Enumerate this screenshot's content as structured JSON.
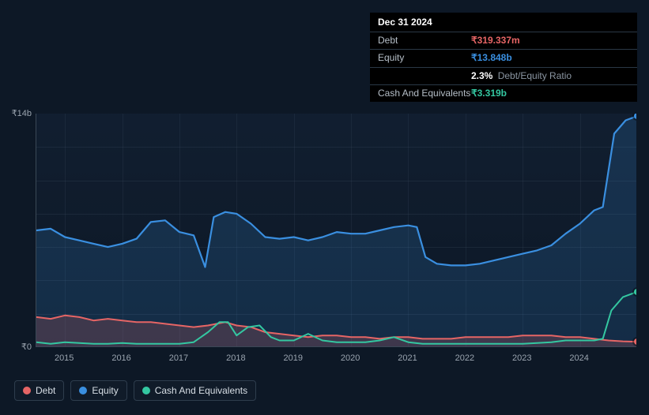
{
  "tooltip": {
    "date": "Dec 31 2024",
    "rows": [
      {
        "label": "Debt",
        "value": "₹319.337m",
        "color": "#e66565"
      },
      {
        "label": "Equity",
        "value": "₹13.848b",
        "color": "#3a8fe0"
      },
      {
        "label": "",
        "value": "2.3%",
        "suffix": "Debt/Equity Ratio",
        "color": "#ffffff"
      },
      {
        "label": "Cash And Equivalents",
        "value": "₹3.319b",
        "color": "#34c7a1"
      }
    ]
  },
  "chart": {
    "y_max": 14,
    "y_axis_labels": [
      {
        "text": "₹14b",
        "value": 14
      },
      {
        "text": "₹0",
        "value": 0
      }
    ],
    "grid_y_values": [
      2,
      4,
      6,
      8,
      10,
      12
    ],
    "x_labels": [
      "2015",
      "2016",
      "2017",
      "2018",
      "2019",
      "2020",
      "2021",
      "2022",
      "2023",
      "2024"
    ],
    "x_start": 2014.5,
    "x_end": 2025.0,
    "background": "#0d1826",
    "grid_color": "rgba(72,90,110,0.22)",
    "axis_color": "#3a4856",
    "series": {
      "equity": {
        "label": "Equity",
        "color": "#3a8fe0",
        "fill_opacity": 0.18,
        "stroke_width": 2.2,
        "points": [
          [
            2014.5,
            7.0
          ],
          [
            2014.75,
            7.1
          ],
          [
            2015.0,
            6.6
          ],
          [
            2015.25,
            6.4
          ],
          [
            2015.5,
            6.2
          ],
          [
            2015.75,
            6.0
          ],
          [
            2016.0,
            6.2
          ],
          [
            2016.25,
            6.5
          ],
          [
            2016.5,
            7.5
          ],
          [
            2016.75,
            7.6
          ],
          [
            2017.0,
            6.9
          ],
          [
            2017.25,
            6.7
          ],
          [
            2017.45,
            4.8
          ],
          [
            2017.6,
            7.8
          ],
          [
            2017.8,
            8.1
          ],
          [
            2018.0,
            8.0
          ],
          [
            2018.25,
            7.4
          ],
          [
            2018.5,
            6.6
          ],
          [
            2018.75,
            6.5
          ],
          [
            2019.0,
            6.6
          ],
          [
            2019.25,
            6.4
          ],
          [
            2019.5,
            6.6
          ],
          [
            2019.75,
            6.9
          ],
          [
            2020.0,
            6.8
          ],
          [
            2020.25,
            6.8
          ],
          [
            2020.5,
            7.0
          ],
          [
            2020.75,
            7.2
          ],
          [
            2021.0,
            7.3
          ],
          [
            2021.15,
            7.2
          ],
          [
            2021.3,
            5.4
          ],
          [
            2021.5,
            5.0
          ],
          [
            2021.75,
            4.9
          ],
          [
            2022.0,
            4.9
          ],
          [
            2022.25,
            5.0
          ],
          [
            2022.5,
            5.2
          ],
          [
            2022.75,
            5.4
          ],
          [
            2023.0,
            5.6
          ],
          [
            2023.25,
            5.8
          ],
          [
            2023.5,
            6.1
          ],
          [
            2023.75,
            6.8
          ],
          [
            2024.0,
            7.4
          ],
          [
            2024.25,
            8.2
          ],
          [
            2024.4,
            8.4
          ],
          [
            2024.6,
            12.8
          ],
          [
            2024.8,
            13.6
          ],
          [
            2025.0,
            13.85
          ]
        ]
      },
      "debt": {
        "label": "Debt",
        "color": "#e66565",
        "fill_opacity": 0.2,
        "stroke_width": 2.0,
        "points": [
          [
            2014.5,
            1.8
          ],
          [
            2014.75,
            1.7
          ],
          [
            2015.0,
            1.9
          ],
          [
            2015.25,
            1.8
          ],
          [
            2015.5,
            1.6
          ],
          [
            2015.75,
            1.7
          ],
          [
            2016.0,
            1.6
          ],
          [
            2016.25,
            1.5
          ],
          [
            2016.5,
            1.5
          ],
          [
            2016.75,
            1.4
          ],
          [
            2017.0,
            1.3
          ],
          [
            2017.25,
            1.2
          ],
          [
            2017.5,
            1.3
          ],
          [
            2017.8,
            1.5
          ],
          [
            2018.0,
            1.3
          ],
          [
            2018.25,
            1.2
          ],
          [
            2018.5,
            0.9
          ],
          [
            2018.75,
            0.8
          ],
          [
            2019.0,
            0.7
          ],
          [
            2019.25,
            0.6
          ],
          [
            2019.5,
            0.7
          ],
          [
            2019.75,
            0.7
          ],
          [
            2020.0,
            0.6
          ],
          [
            2020.25,
            0.6
          ],
          [
            2020.5,
            0.5
          ],
          [
            2020.75,
            0.6
          ],
          [
            2021.0,
            0.6
          ],
          [
            2021.25,
            0.5
          ],
          [
            2021.5,
            0.5
          ],
          [
            2021.75,
            0.5
          ],
          [
            2022.0,
            0.6
          ],
          [
            2022.25,
            0.6
          ],
          [
            2022.5,
            0.6
          ],
          [
            2022.75,
            0.6
          ],
          [
            2023.0,
            0.7
          ],
          [
            2023.25,
            0.7
          ],
          [
            2023.5,
            0.7
          ],
          [
            2023.75,
            0.6
          ],
          [
            2024.0,
            0.6
          ],
          [
            2024.25,
            0.5
          ],
          [
            2024.5,
            0.4
          ],
          [
            2024.75,
            0.35
          ],
          [
            2025.0,
            0.32
          ]
        ]
      },
      "cash": {
        "label": "Cash And Equivalents",
        "color": "#34c7a1",
        "fill_opacity": 0,
        "stroke_width": 2.0,
        "points": [
          [
            2014.5,
            0.3
          ],
          [
            2014.75,
            0.2
          ],
          [
            2015.0,
            0.3
          ],
          [
            2015.25,
            0.25
          ],
          [
            2015.5,
            0.2
          ],
          [
            2015.75,
            0.2
          ],
          [
            2016.0,
            0.25
          ],
          [
            2016.25,
            0.2
          ],
          [
            2016.5,
            0.2
          ],
          [
            2016.75,
            0.2
          ],
          [
            2017.0,
            0.2
          ],
          [
            2017.25,
            0.3
          ],
          [
            2017.5,
            0.9
          ],
          [
            2017.7,
            1.5
          ],
          [
            2017.85,
            1.5
          ],
          [
            2018.0,
            0.7
          ],
          [
            2018.2,
            1.2
          ],
          [
            2018.4,
            1.3
          ],
          [
            2018.6,
            0.6
          ],
          [
            2018.75,
            0.4
          ],
          [
            2019.0,
            0.4
          ],
          [
            2019.25,
            0.8
          ],
          [
            2019.5,
            0.4
          ],
          [
            2019.75,
            0.3
          ],
          [
            2020.0,
            0.3
          ],
          [
            2020.25,
            0.3
          ],
          [
            2020.5,
            0.4
          ],
          [
            2020.75,
            0.6
          ],
          [
            2021.0,
            0.3
          ],
          [
            2021.25,
            0.2
          ],
          [
            2021.5,
            0.2
          ],
          [
            2021.75,
            0.2
          ],
          [
            2022.0,
            0.2
          ],
          [
            2022.25,
            0.2
          ],
          [
            2022.5,
            0.2
          ],
          [
            2022.75,
            0.2
          ],
          [
            2023.0,
            0.2
          ],
          [
            2023.25,
            0.25
          ],
          [
            2023.5,
            0.3
          ],
          [
            2023.75,
            0.4
          ],
          [
            2024.0,
            0.4
          ],
          [
            2024.25,
            0.4
          ],
          [
            2024.4,
            0.5
          ],
          [
            2024.55,
            2.2
          ],
          [
            2024.75,
            3.0
          ],
          [
            2025.0,
            3.32
          ]
        ]
      }
    },
    "legend_order": [
      "debt",
      "equity",
      "cash"
    ]
  }
}
